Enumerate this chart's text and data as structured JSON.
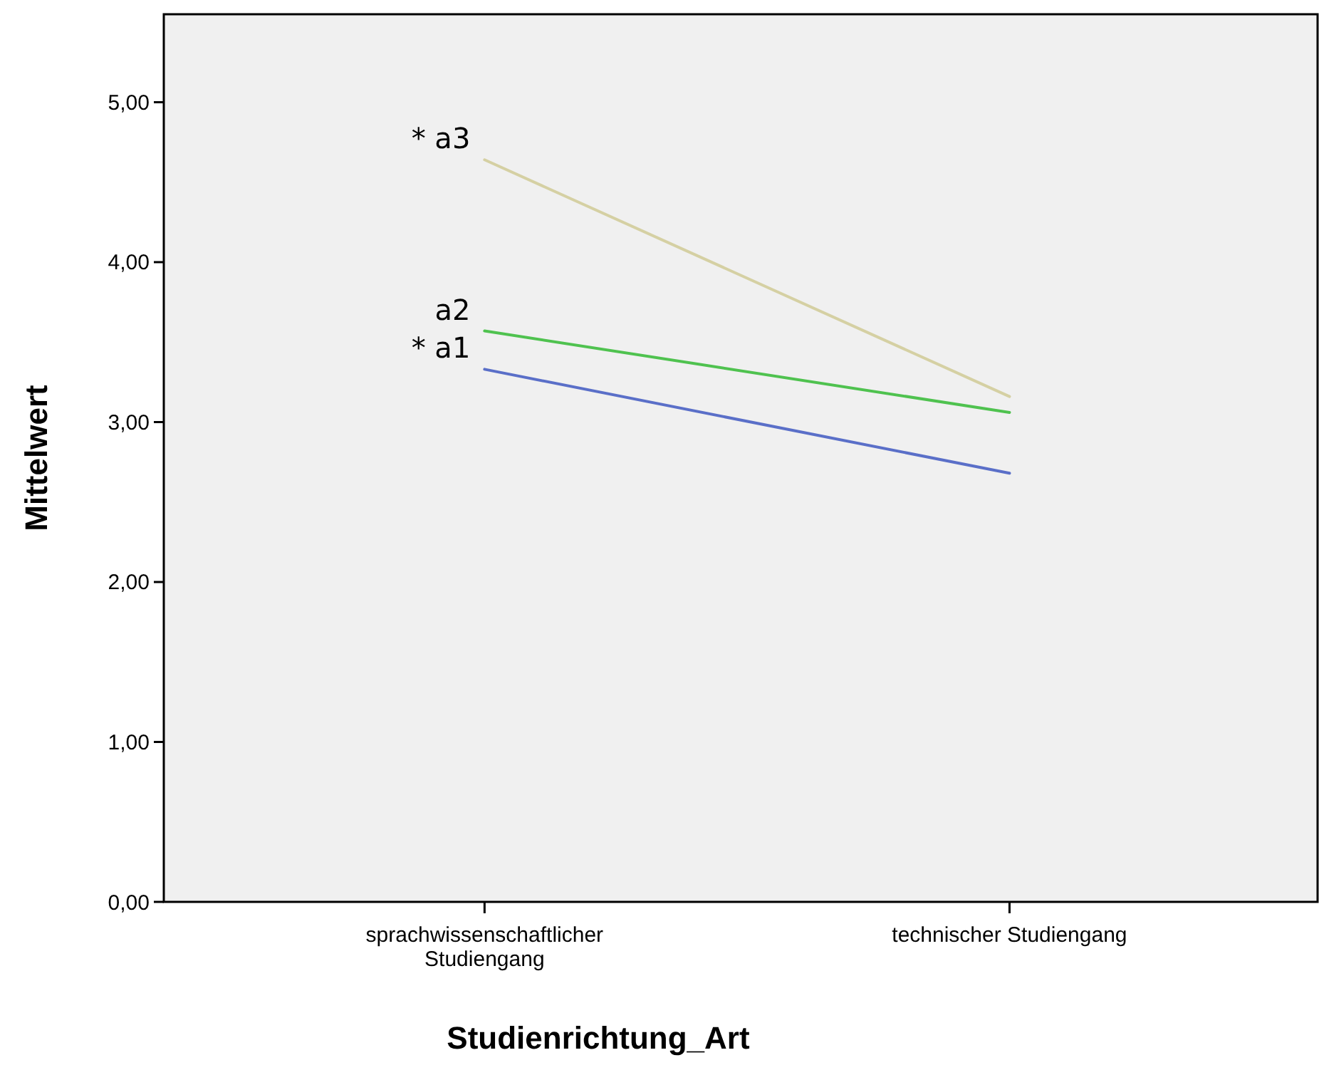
{
  "chart_data": {
    "type": "line",
    "xlabel": "Studienrichtung_Art",
    "ylabel": "Mittelwert",
    "categories": [
      "sprachwissenschaftlicher Studiengang",
      "technischer Studiengang"
    ],
    "series": [
      {
        "name": "* a3",
        "color": "#d5d0a3",
        "values": [
          4.64,
          3.16
        ]
      },
      {
        "name": "a2",
        "color": "#4fc24f",
        "values": [
          3.57,
          3.06
        ]
      },
      {
        "name": "* a1",
        "color": "#5a6fc8",
        "values": [
          3.33,
          2.68
        ]
      }
    ],
    "ylim": [
      0,
      5.55
    ],
    "yticks": [
      {
        "value": 0,
        "label": "0,00"
      },
      {
        "value": 1,
        "label": "1,00"
      },
      {
        "value": 2,
        "label": "2,00"
      },
      {
        "value": 3,
        "label": "3,00"
      },
      {
        "value": 4,
        "label": "4,00"
      },
      {
        "value": 5,
        "label": "5,00"
      }
    ],
    "grid": false,
    "legend": false,
    "marker": "none",
    "line_style": "solid"
  }
}
